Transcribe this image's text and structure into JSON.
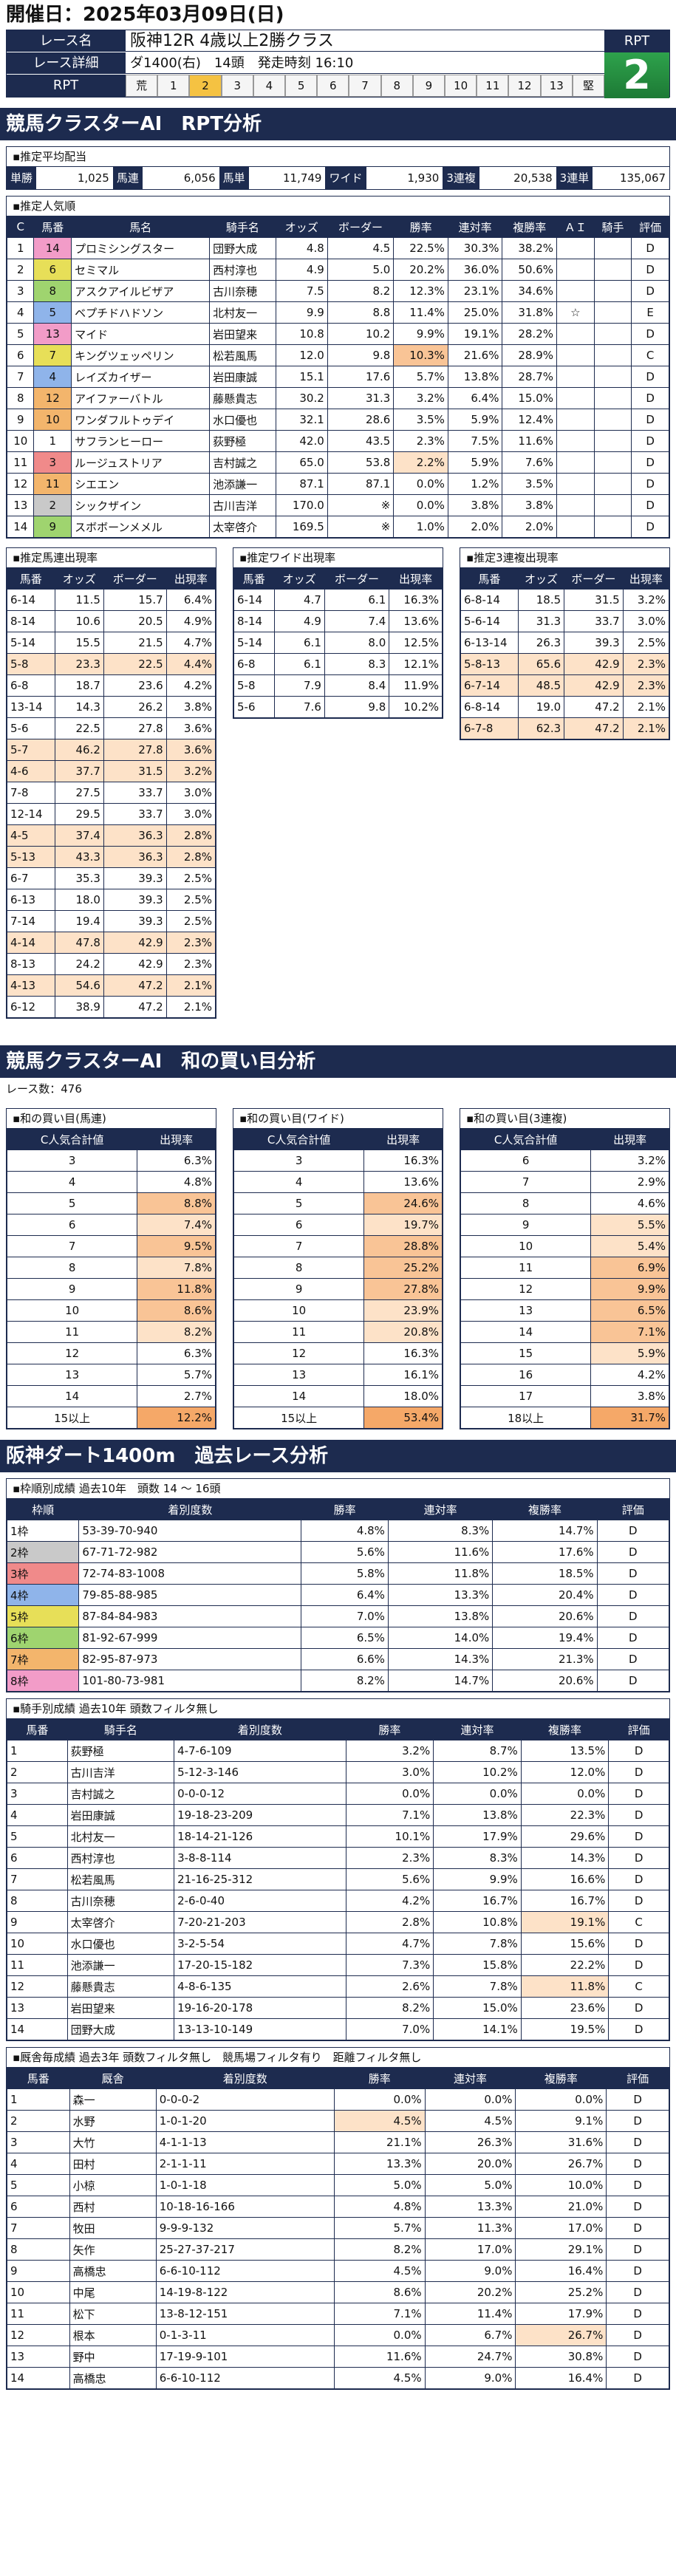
{
  "header": "開催日：2025年03月09日(日)",
  "race": {
    "name_label": "レース名",
    "name": "阪神12R 4歳以上2勝クラス",
    "detail_label": "レース詳細",
    "course": "ダ1400(右)",
    "heads": "14頭",
    "time": "発走時刻 16:10",
    "rpt_label": "RPT",
    "rpt_cells": [
      "荒",
      "1",
      "2",
      "3",
      "4",
      "5",
      "6",
      "7",
      "8",
      "9",
      "10",
      "11",
      "12",
      "13",
      "堅"
    ],
    "rpt_active": 2,
    "rpt_head": "RPT",
    "rpt_value": "2"
  },
  "sec1": "競馬クラスターAI　RPT分析",
  "avg_title": "▪推定平均配当",
  "prices": [
    [
      "単勝",
      "1,025"
    ],
    [
      "馬連",
      "6,056"
    ],
    [
      "馬単",
      "11,749"
    ],
    [
      "ワイド",
      "1,930"
    ],
    [
      "3連複",
      "20,538"
    ],
    [
      "3連単",
      "135,067"
    ]
  ],
  "pop_title": "▪推定人気順",
  "pop_headers": [
    "C",
    "馬番",
    "馬名",
    "騎手名",
    "オッズ",
    "ボーダー",
    "勝率",
    "連対率",
    "複勝率",
    "ＡＩ",
    "騎手",
    "評価"
  ],
  "pop_rows": [
    [
      "1",
      "14",
      "プロミシングスター",
      "団野大成",
      "4.8",
      "4.5",
      "22.5%",
      "30.3%",
      "38.2%",
      "",
      "",
      "D"
    ],
    [
      "2",
      "6",
      "セミマル",
      "西村淳也",
      "4.9",
      "5.0",
      "20.2%",
      "36.0%",
      "50.6%",
      "",
      "",
      "D"
    ],
    [
      "3",
      "8",
      "アスクアイルビザア",
      "古川奈穂",
      "7.5",
      "8.2",
      "12.3%",
      "23.1%",
      "34.6%",
      "",
      "",
      "D"
    ],
    [
      "4",
      "5",
      "ベプチドハドソン",
      "北村友一",
      "9.9",
      "8.8",
      "11.4%",
      "25.0%",
      "31.8%",
      "☆",
      "",
      "E"
    ],
    [
      "5",
      "13",
      "マイド",
      "岩田望来",
      "10.8",
      "10.2",
      "9.9%",
      "19.1%",
      "28.2%",
      "",
      "",
      "D"
    ],
    [
      "6",
      "7",
      "キングツェッペリン",
      "松若風馬",
      "12.0",
      "9.8",
      "10.3%",
      "21.6%",
      "28.9%",
      "",
      "",
      "C"
    ],
    [
      "7",
      "4",
      "レイズカイザー",
      "岩田康誠",
      "15.1",
      "17.6",
      "5.7%",
      "13.8%",
      "28.7%",
      "",
      "",
      "D"
    ],
    [
      "8",
      "12",
      "アイファーバトル",
      "藤懸貴志",
      "30.2",
      "31.3",
      "3.2%",
      "6.4%",
      "15.0%",
      "",
      "",
      "D"
    ],
    [
      "9",
      "10",
      "ワンダフルトゥデイ",
      "水口優也",
      "32.1",
      "28.6",
      "3.5%",
      "5.9%",
      "12.4%",
      "",
      "",
      "D"
    ],
    [
      "10",
      "1",
      "サフランヒーロー",
      "荻野極",
      "42.0",
      "43.5",
      "2.3%",
      "7.5%",
      "11.6%",
      "",
      "",
      "D"
    ],
    [
      "11",
      "3",
      "ルージュストリア",
      "吉村誠之",
      "65.0",
      "53.8",
      "2.2%",
      "5.9%",
      "7.6%",
      "",
      "",
      "D"
    ],
    [
      "12",
      "11",
      "シエエン",
      "池添謙一",
      "87.1",
      "87.1",
      "0.0%",
      "1.2%",
      "3.5%",
      "",
      "",
      "D"
    ],
    [
      "13",
      "2",
      "シックザイン",
      "古川吉洋",
      "170.0",
      "※",
      "0.0%",
      "3.8%",
      "3.8%",
      "",
      "",
      "D"
    ],
    [
      "14",
      "9",
      "スボボーンメメル",
      "太宰啓介",
      "169.5",
      "※",
      "1.0%",
      "2.0%",
      "2.0%",
      "",
      "",
      "D"
    ]
  ],
  "umaren_title": "▪推定馬連出現率",
  "wide_title": "▪推定ワイド出現率",
  "sanren_title": "▪推定3連複出現率",
  "combo_headers": [
    "馬番",
    "オッズ",
    "ボーダー",
    "出現率"
  ],
  "umaren_rows": [
    [
      "6-14",
      "11.5",
      "15.7",
      "6.4%"
    ],
    [
      "8-14",
      "10.6",
      "20.5",
      "4.9%"
    ],
    [
      "5-14",
      "15.5",
      "21.5",
      "4.7%"
    ],
    [
      "5-8",
      "23.3",
      "22.5",
      "4.4%"
    ],
    [
      "6-8",
      "18.7",
      "23.6",
      "4.2%"
    ],
    [
      "13-14",
      "14.3",
      "26.2",
      "3.8%"
    ],
    [
      "5-6",
      "22.5",
      "27.8",
      "3.6%"
    ],
    [
      "5-7",
      "46.2",
      "27.8",
      "3.6%"
    ],
    [
      "4-6",
      "37.7",
      "31.5",
      "3.2%"
    ],
    [
      "7-8",
      "27.5",
      "33.7",
      "3.0%"
    ],
    [
      "12-14",
      "29.5",
      "33.7",
      "3.0%"
    ],
    [
      "4-5",
      "37.4",
      "36.3",
      "2.8%"
    ],
    [
      "5-13",
      "43.3",
      "36.3",
      "2.8%"
    ],
    [
      "6-7",
      "35.3",
      "39.3",
      "2.5%"
    ],
    [
      "6-13",
      "18.0",
      "39.3",
      "2.5%"
    ],
    [
      "7-14",
      "19.4",
      "39.3",
      "2.5%"
    ],
    [
      "4-14",
      "47.8",
      "42.9",
      "2.3%"
    ],
    [
      "8-13",
      "24.2",
      "42.9",
      "2.3%"
    ],
    [
      "4-13",
      "54.6",
      "47.2",
      "2.1%"
    ],
    [
      "6-12",
      "38.9",
      "47.2",
      "2.1%"
    ]
  ],
  "wide_rows": [
    [
      "6-14",
      "4.7",
      "6.1",
      "16.3%"
    ],
    [
      "8-14",
      "4.9",
      "7.4",
      "13.6%"
    ],
    [
      "5-14",
      "6.1",
      "8.0",
      "12.5%"
    ],
    [
      "6-8",
      "6.1",
      "8.3",
      "12.1%"
    ],
    [
      "5-8",
      "7.9",
      "8.4",
      "11.9%"
    ],
    [
      "5-6",
      "7.6",
      "9.8",
      "10.2%"
    ]
  ],
  "sanren_rows": [
    [
      "6-8-14",
      "18.5",
      "31.5",
      "3.2%"
    ],
    [
      "5-6-14",
      "31.3",
      "33.7",
      "3.0%"
    ],
    [
      "6-13-14",
      "26.3",
      "39.3",
      "2.5%"
    ],
    [
      "5-8-13",
      "65.6",
      "42.9",
      "2.3%"
    ],
    [
      "6-7-14",
      "48.5",
      "42.9",
      "2.3%"
    ],
    [
      "6-8-14",
      "19.0",
      "47.2",
      "2.1%"
    ],
    [
      "6-7-8",
      "62.3",
      "47.2",
      "2.1%"
    ]
  ],
  "sec2": "競馬クラスターAI　和の買い目分析",
  "race_count": "レース数：476",
  "sum_titles": [
    "▪和の買い目(馬連)",
    "▪和の買い目(ワイド)",
    "▪和の買い目(3連複)"
  ],
  "sum_headers": [
    "C人気合計値",
    "出現率"
  ],
  "sum_umaren": [
    [
      "3",
      "6.3%"
    ],
    [
      "4",
      "4.8%"
    ],
    [
      "5",
      "8.8%"
    ],
    [
      "6",
      "7.4%"
    ],
    [
      "7",
      "9.5%"
    ],
    [
      "8",
      "7.8%"
    ],
    [
      "9",
      "11.8%"
    ],
    [
      "10",
      "8.6%"
    ],
    [
      "11",
      "8.2%"
    ],
    [
      "12",
      "6.3%"
    ],
    [
      "13",
      "5.7%"
    ],
    [
      "14",
      "2.7%"
    ],
    [
      "15以上",
      "12.2%"
    ]
  ],
  "sum_wide": [
    [
      "3",
      "16.3%"
    ],
    [
      "4",
      "13.6%"
    ],
    [
      "5",
      "24.6%"
    ],
    [
      "6",
      "19.7%"
    ],
    [
      "7",
      "28.8%"
    ],
    [
      "8",
      "25.2%"
    ],
    [
      "9",
      "27.8%"
    ],
    [
      "10",
      "23.9%"
    ],
    [
      "11",
      "20.8%"
    ],
    [
      "12",
      "16.3%"
    ],
    [
      "13",
      "16.1%"
    ],
    [
      "14",
      "18.0%"
    ],
    [
      "15以上",
      "53.4%"
    ]
  ],
  "sum_sanren": [
    [
      "6",
      "3.2%"
    ],
    [
      "7",
      "2.9%"
    ],
    [
      "8",
      "4.6%"
    ],
    [
      "9",
      "5.5%"
    ],
    [
      "10",
      "5.4%"
    ],
    [
      "11",
      "6.9%"
    ],
    [
      "12",
      "9.9%"
    ],
    [
      "13",
      "6.5%"
    ],
    [
      "14",
      "7.1%"
    ],
    [
      "15",
      "5.9%"
    ],
    [
      "16",
      "4.2%"
    ],
    [
      "17",
      "3.8%"
    ],
    [
      "18以上",
      "31.7%"
    ]
  ],
  "sec3": "阪神ダート1400m　過去レース分析",
  "waku_title": "▪枠順別成績 過去10年　頭数 14 ～ 16頭",
  "rec_headers": [
    "枠順",
    "着別度数",
    "勝率",
    "連対率",
    "複勝率",
    "評価"
  ],
  "waku_rows": [
    [
      "1枠",
      "53-39-70-940",
      "4.8%",
      "8.3%",
      "14.7%",
      "D"
    ],
    [
      "2枠",
      "67-71-72-982",
      "5.6%",
      "11.6%",
      "17.6%",
      "D"
    ],
    [
      "3枠",
      "72-74-83-1008",
      "5.8%",
      "11.8%",
      "18.5%",
      "D"
    ],
    [
      "4枠",
      "79-85-88-985",
      "6.4%",
      "13.3%",
      "20.4%",
      "D"
    ],
    [
      "5枠",
      "87-84-84-983",
      "7.0%",
      "13.8%",
      "20.6%",
      "D"
    ],
    [
      "6枠",
      "81-92-67-999",
      "6.5%",
      "14.0%",
      "19.4%",
      "D"
    ],
    [
      "7枠",
      "82-95-87-973",
      "6.6%",
      "14.3%",
      "21.3%",
      "D"
    ],
    [
      "8枠",
      "101-80-73-981",
      "8.2%",
      "14.7%",
      "20.6%",
      "D"
    ]
  ],
  "jockey_title": "▪騎手別成績 過去10年 頭数フィルタ無し",
  "jockey_headers": [
    "馬番",
    "騎手名",
    "着別度数",
    "勝率",
    "連対率",
    "複勝率",
    "評価"
  ],
  "jockey_rows": [
    [
      "1",
      "荻野極",
      "4-7-6-109",
      "3.2%",
      "8.7%",
      "13.5%",
      "D"
    ],
    [
      "2",
      "古川吉洋",
      "5-12-3-146",
      "3.0%",
      "10.2%",
      "12.0%",
      "D"
    ],
    [
      "3",
      "吉村誠之",
      "0-0-0-12",
      "0.0%",
      "0.0%",
      "0.0%",
      "D"
    ],
    [
      "4",
      "岩田康誠",
      "19-18-23-209",
      "7.1%",
      "13.8%",
      "22.3%",
      "D"
    ],
    [
      "5",
      "北村友一",
      "18-14-21-126",
      "10.1%",
      "17.9%",
      "29.6%",
      "D"
    ],
    [
      "6",
      "西村淳也",
      "3-8-8-114",
      "2.3%",
      "8.3%",
      "14.3%",
      "D"
    ],
    [
      "7",
      "松若風馬",
      "21-16-25-312",
      "5.6%",
      "9.9%",
      "16.6%",
      "D"
    ],
    [
      "8",
      "古川奈穂",
      "2-6-0-40",
      "4.2%",
      "16.7%",
      "16.7%",
      "D"
    ],
    [
      "9",
      "太宰啓介",
      "7-20-21-203",
      "2.8%",
      "10.8%",
      "19.1%",
      "C"
    ],
    [
      "10",
      "水口優也",
      "3-2-5-54",
      "4.7%",
      "7.8%",
      "15.6%",
      "D"
    ],
    [
      "11",
      "池添謙一",
      "17-20-15-182",
      "7.3%",
      "15.8%",
      "22.2%",
      "D"
    ],
    [
      "12",
      "藤懸貴志",
      "4-8-6-135",
      "2.6%",
      "7.8%",
      "11.8%",
      "C"
    ],
    [
      "13",
      "岩田望来",
      "19-16-20-178",
      "8.2%",
      "15.0%",
      "23.6%",
      "D"
    ],
    [
      "14",
      "団野大成",
      "13-13-10-149",
      "7.0%",
      "14.1%",
      "19.5%",
      "D"
    ]
  ],
  "trainer_title": "▪厩舎毎成績 過去3年 頭数フィルタ無し　競馬場フィルタ有り　距離フィルタ無し",
  "trainer_headers": [
    "馬番",
    "厩舎",
    "着別度数",
    "勝率",
    "連対率",
    "複勝率",
    "評価"
  ],
  "trainer_rows": [
    [
      "1",
      "森一",
      "0-0-0-2",
      "0.0%",
      "0.0%",
      "0.0%",
      "D"
    ],
    [
      "2",
      "水野",
      "1-0-1-20",
      "4.5%",
      "4.5%",
      "9.1%",
      "D"
    ],
    [
      "3",
      "大竹",
      "4-1-1-13",
      "21.1%",
      "26.3%",
      "31.6%",
      "D"
    ],
    [
      "4",
      "田村",
      "2-1-1-11",
      "13.3%",
      "20.0%",
      "26.7%",
      "D"
    ],
    [
      "5",
      "小椋",
      "1-0-1-18",
      "5.0%",
      "5.0%",
      "10.0%",
      "D"
    ],
    [
      "6",
      "西村",
      "10-18-16-166",
      "4.8%",
      "13.3%",
      "21.0%",
      "D"
    ],
    [
      "7",
      "牧田",
      "9-9-9-132",
      "5.7%",
      "11.3%",
      "17.0%",
      "D"
    ],
    [
      "8",
      "矢作",
      "25-27-37-217",
      "8.2%",
      "17.0%",
      "29.1%",
      "D"
    ],
    [
      "9",
      "高橋忠",
      "6-6-10-112",
      "4.5%",
      "9.0%",
      "16.4%",
      "D"
    ],
    [
      "10",
      "中尾",
      "14-19-8-122",
      "8.6%",
      "20.2%",
      "25.2%",
      "D"
    ],
    [
      "11",
      "松下",
      "13-8-12-151",
      "7.1%",
      "11.4%",
      "17.9%",
      "D"
    ],
    [
      "12",
      "根本",
      "0-1-3-11",
      "0.0%",
      "6.7%",
      "26.7%",
      "D"
    ],
    [
      "13",
      "野中",
      "17-19-9-101",
      "11.6%",
      "24.7%",
      "30.8%",
      "D"
    ],
    [
      "14",
      "高橋忠",
      "6-6-10-112",
      "4.5%",
      "9.0%",
      "16.4%",
      "D"
    ]
  ],
  "colors": {
    "navy": "#1d2b4f",
    "hl_dark": "#f5a868",
    "hl_mid": "#f9c496",
    "hl_light": "#fde2c8",
    "rpt_green": "#2ea24c"
  }
}
